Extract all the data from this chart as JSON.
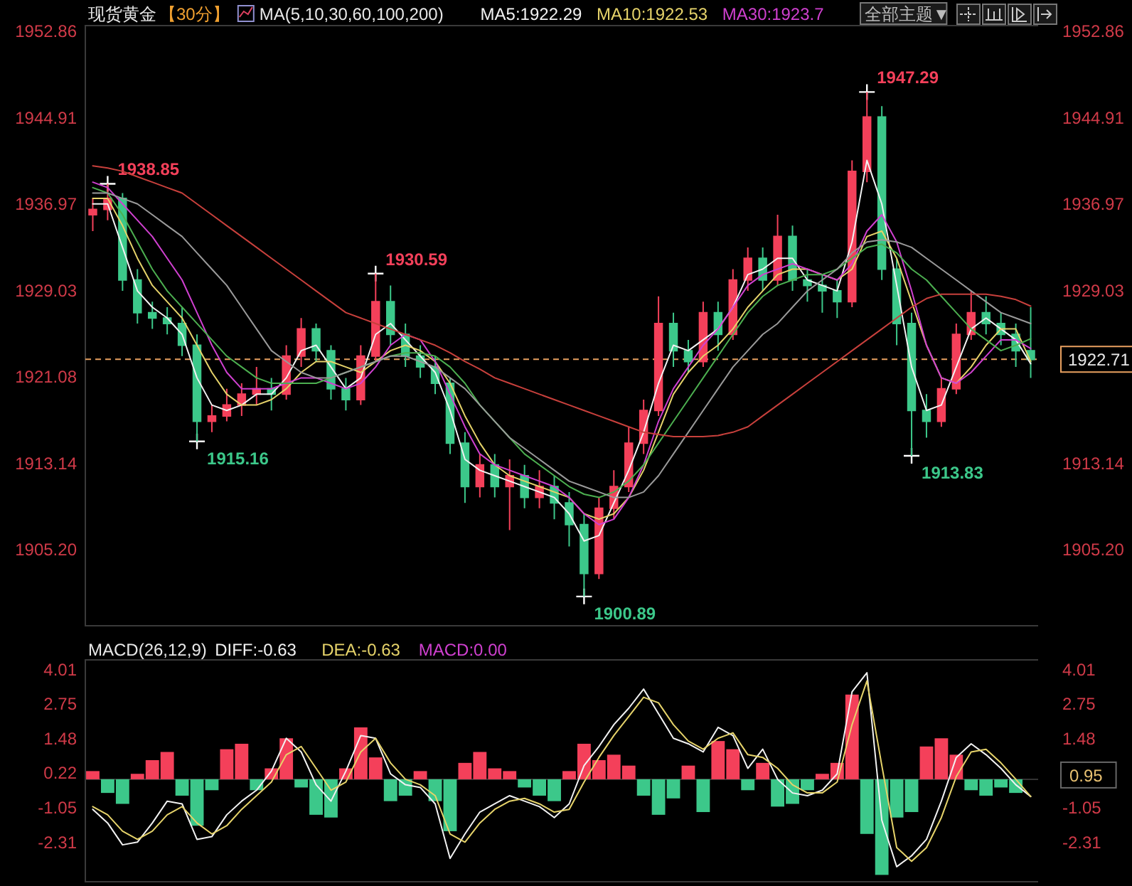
{
  "chart_data": [
    {
      "type": "candlestick",
      "title": "现货黄金",
      "subtitle": "【30分】",
      "legend_title": "MA(5,10,30,60,100,200)",
      "legend": "top",
      "categories": [
        null,
        null,
        null,
        null,
        null,
        null,
        null,
        null,
        null,
        null,
        null,
        null,
        null,
        null,
        null,
        null,
        null,
        null,
        null,
        null,
        null,
        null,
        null,
        null,
        null,
        null,
        null,
        null,
        null,
        null,
        null,
        null,
        null,
        null,
        null,
        null,
        null,
        null,
        null,
        null,
        null,
        null,
        null,
        null,
        null,
        null,
        null,
        null,
        null,
        null,
        null,
        null,
        null,
        null,
        null,
        null,
        null,
        null,
        null,
        null,
        null,
        null,
        null,
        null
      ],
      "ylim": [
        1898.2,
        1953.4
      ],
      "yticks": [
        {
          "value": 1905.2,
          "label": "1905.20"
        },
        {
          "value": 1913.14,
          "label": "1913.14"
        },
        {
          "value": 1921.08,
          "label": "1921.08"
        },
        {
          "value": 1929.03,
          "label": "1929.03"
        },
        {
          "value": 1936.97,
          "label": "1936.97"
        },
        {
          "value": 1944.91,
          "label": "1944.91"
        },
        {
          "value": 1952.86,
          "label": "1952.86"
        }
      ],
      "y2lim": [
        1898.2,
        1953.4
      ],
      "y2ticks": [
        {
          "value": 1905.2,
          "label": "1905.20"
        },
        {
          "value": 1913.14,
          "label": "1913.14"
        },
        {
          "value": 1929.03,
          "label": "1929.03"
        },
        {
          "value": 1936.97,
          "label": "1936.97"
        },
        {
          "value": 1944.91,
          "label": "1944.91"
        },
        {
          "value": 1952.86,
          "label": "1952.86"
        }
      ],
      "ohlc": [
        [
          1936,
          1937.5,
          1934.5,
          1936.5
        ],
        [
          1936.5,
          1938.85,
          1935.5,
          1937.5
        ],
        [
          1937.5,
          1938,
          1929,
          1930
        ],
        [
          1930,
          1931,
          1926,
          1927
        ],
        [
          1927,
          1928,
          1925.5,
          1926.5
        ],
        [
          1926.5,
          1927.5,
          1925,
          1926
        ],
        [
          1926,
          1927.5,
          1923,
          1924
        ],
        [
          1924,
          1925,
          1915.16,
          1917
        ],
        [
          1917,
          1918.5,
          1916,
          1917.5
        ],
        [
          1917.5,
          1920,
          1917,
          1918.5
        ],
        [
          1918.5,
          1920.5,
          1917.5,
          1919.5
        ],
        [
          1919.5,
          1922,
          1918.5,
          1920
        ],
        [
          1920,
          1921,
          1918,
          1919.5
        ],
        [
          1919.5,
          1924,
          1919,
          1923
        ],
        [
          1923,
          1926.5,
          1922,
          1925.5
        ],
        [
          1925.5,
          1926,
          1922.5,
          1923.5
        ],
        [
          1923.5,
          1924,
          1919,
          1920
        ],
        [
          1920,
          1921,
          1918,
          1919
        ],
        [
          1919,
          1924,
          1918.5,
          1923
        ],
        [
          1923,
          1930.59,
          1922.5,
          1928
        ],
        [
          1928,
          1929.5,
          1924,
          1925
        ],
        [
          1925,
          1926,
          1922,
          1923
        ],
        [
          1923,
          1924,
          1921,
          1922
        ],
        [
          1922,
          1923,
          1919.5,
          1920.5
        ],
        [
          1920.5,
          1921,
          1914,
          1915
        ],
        [
          1915,
          1916,
          1909.5,
          1911
        ],
        [
          1911,
          1914,
          1910,
          1913
        ],
        [
          1913,
          1914,
          1910,
          1911
        ],
        [
          1911,
          1913.5,
          1907,
          1912
        ],
        [
          1912,
          1913,
          1909,
          1910
        ],
        [
          1910,
          1912.5,
          1909,
          1911
        ],
        [
          1911,
          1912,
          1908,
          1909.5
        ],
        [
          1909.5,
          1910.5,
          1905.5,
          1907.5
        ],
        [
          1907.5,
          1908.5,
          1900.89,
          1903
        ],
        [
          1903,
          1910,
          1902.5,
          1909
        ],
        [
          1909,
          1912.5,
          1908,
          1911
        ],
        [
          1911,
          1916.5,
          1910.5,
          1915
        ],
        [
          1915,
          1919,
          1914,
          1918
        ],
        [
          1918,
          1928.5,
          1917.5,
          1926
        ],
        [
          1926,
          1927,
          1922,
          1923.5
        ],
        [
          1923.5,
          1924.5,
          1921.5,
          1922.5
        ],
        [
          1922.5,
          1928,
          1922,
          1927
        ],
        [
          1927,
          1928,
          1923.5,
          1925
        ],
        [
          1925,
          1931,
          1924.5,
          1930
        ],
        [
          1930,
          1933,
          1929,
          1932
        ],
        [
          1932,
          1933,
          1929,
          1930
        ],
        [
          1930,
          1936,
          1929.5,
          1934
        ],
        [
          1934,
          1935,
          1929,
          1930
        ],
        [
          1930,
          1931,
          1928,
          1929.5
        ],
        [
          1929.5,
          1930.5,
          1927,
          1929
        ],
        [
          1929,
          1930,
          1926.5,
          1928
        ],
        [
          1928,
          1941,
          1927.5,
          1940
        ],
        [
          1940,
          1947.29,
          1939,
          1945
        ],
        [
          1945,
          1946,
          1930,
          1931
        ],
        [
          1931,
          1932,
          1924,
          1926
        ],
        [
          1926,
          1927,
          1913.83,
          1918
        ],
        [
          1918,
          1919.5,
          1915.5,
          1917
        ],
        [
          1917,
          1921,
          1916.5,
          1920
        ],
        [
          1920,
          1926,
          1919.5,
          1925
        ],
        [
          1925,
          1929,
          1924.5,
          1927
        ],
        [
          1927,
          1928.5,
          1925,
          1926
        ],
        [
          1926,
          1927,
          1924,
          1925
        ],
        [
          1925,
          1926,
          1922,
          1923.5
        ],
        [
          1923.5,
          1927.5,
          1921,
          1922.7
        ]
      ],
      "series": [
        {
          "type": "line",
          "name": "MA5:1922.29",
          "color": "#f2f2f2",
          "values": [
            1937,
            1937,
            1933,
            1929,
            1927.5,
            1926.5,
            1925,
            1921,
            1918.5,
            1918,
            1918.5,
            1919.5,
            1919.5,
            1921,
            1923.5,
            1924,
            1922,
            1920,
            1921,
            1925,
            1926,
            1924.5,
            1923,
            1921.5,
            1918,
            1913.5,
            1912.5,
            1912,
            1911.5,
            1911,
            1910.5,
            1910,
            1908.5,
            1906,
            1906.5,
            1909.5,
            1912.5,
            1916,
            1920.5,
            1924,
            1923.5,
            1924.5,
            1925.5,
            1927.5,
            1930.5,
            1931,
            1932,
            1932,
            1930,
            1929.5,
            1929,
            1933.5,
            1941,
            1937,
            1929.5,
            1922,
            1918,
            1918.5,
            1922,
            1925.5,
            1926.5,
            1925.5,
            1924.5,
            1922.3
          ]
        },
        {
          "type": "line",
          "name": "MA10:1922.53",
          "color": "#e6d36a",
          "values": [
            1937.5,
            1937.5,
            1935,
            1932,
            1929.5,
            1928,
            1926.5,
            1924,
            1921.5,
            1919.5,
            1918.5,
            1918.5,
            1919,
            1920,
            1921.5,
            1922.5,
            1922.5,
            1922,
            1921.5,
            1922.5,
            1923.5,
            1924,
            1923.5,
            1922.5,
            1920.5,
            1917.5,
            1915,
            1913,
            1912,
            1911.5,
            1911,
            1910.5,
            1910,
            1908.5,
            1908,
            1908.5,
            1910,
            1912.5,
            1916,
            1919.5,
            1921.5,
            1923,
            1924,
            1925.5,
            1927.5,
            1929,
            1930.5,
            1931,
            1931,
            1930.5,
            1930,
            1931,
            1934,
            1934.5,
            1932,
            1928,
            1924,
            1921,
            1920.5,
            1922,
            1924,
            1925.5,
            1925.5,
            1922.5
          ]
        },
        {
          "type": "line",
          "name": "MA30:1923.7",
          "color": "#d040d0",
          "values": [
            1939,
            1938.5,
            1937,
            1935.5,
            1934,
            1932,
            1930,
            1927,
            1924,
            1921.5,
            1920,
            1920,
            1920,
            1920.5,
            1921,
            1921,
            1920.5,
            1920,
            1920.5,
            1922,
            1924,
            1925,
            1924.5,
            1922.5,
            1919.5,
            1916.5,
            1914,
            1913,
            1912.5,
            1912,
            1911.5,
            1911,
            1910,
            1908.5,
            1907.5,
            1908,
            1910,
            1913,
            1917,
            1920,
            1922,
            1924,
            1925.5,
            1927.5,
            1929.5,
            1930.5,
            1931,
            1931.5,
            1931,
            1930.5,
            1930,
            1931.5,
            1934.5,
            1936,
            1933.5,
            1929,
            1924,
            1921,
            1920.5,
            1921.5,
            1923,
            1924.5,
            1924.5,
            1923.7
          ]
        },
        {
          "type": "line",
          "color": "#4caf50",
          "values": [
            1938.5,
            1938,
            1936,
            1933.5,
            1931,
            1929,
            1927.5,
            1926,
            1924.5,
            1923,
            1922,
            1921,
            1920.5,
            1920.5,
            1920.5,
            1920.5,
            1921,
            1921.5,
            1922,
            1922.5,
            1923,
            1923.3,
            1923.3,
            1923,
            1922,
            1920.5,
            1918.5,
            1917,
            1915.5,
            1914,
            1913,
            1912,
            1911,
            1910.3,
            1910,
            1910.5,
            1911.5,
            1913,
            1915,
            1917,
            1919,
            1921,
            1923,
            1925,
            1927,
            1928.5,
            1929.5,
            1930,
            1930.5,
            1930.5,
            1931,
            1932,
            1933,
            1933.3,
            1932.5,
            1931,
            1930,
            1928.5,
            1927,
            1925.5,
            1924.5,
            1923.5,
            1924,
            1924.6
          ]
        },
        {
          "type": "line",
          "color": "#9a9a9a",
          "values": [
            1938,
            1938,
            1937.5,
            1937,
            1936,
            1935,
            1934,
            1932.5,
            1931,
            1929.5,
            1927.5,
            1925.5,
            1923.5,
            1922.5,
            1921.5,
            1921,
            1921,
            1921.5,
            1922,
            1922.5,
            1923,
            1923,
            1922.5,
            1922,
            1921,
            1920,
            1918.5,
            1917,
            1915.5,
            1914.5,
            1913.5,
            1912.5,
            1911.5,
            1911,
            1910.5,
            1910,
            1910,
            1910.5,
            1912,
            1914,
            1916,
            1918,
            1920,
            1922,
            1923.5,
            1925,
            1926,
            1927.5,
            1929,
            1930,
            1931,
            1932.5,
            1933.5,
            1933.7,
            1933.5,
            1933,
            1932,
            1931,
            1930,
            1929,
            1928,
            1927,
            1926.5,
            1926
          ]
        },
        {
          "type": "line",
          "color": "#c8403c",
          "values": [
            1940.5,
            1940.3,
            1940,
            1939.5,
            1939,
            1938.5,
            1938,
            1937,
            1936,
            1935,
            1934,
            1933,
            1932,
            1931,
            1930,
            1929,
            1928,
            1927,
            1926.5,
            1926,
            1925.5,
            1925,
            1924.5,
            1924,
            1923.3,
            1922.5,
            1921.8,
            1921,
            1920.5,
            1920,
            1919.5,
            1919,
            1918.5,
            1918,
            1917.5,
            1917,
            1916.5,
            1916,
            1915.8,
            1915.6,
            1915.6,
            1915.6,
            1915.7,
            1916,
            1916.5,
            1917.5,
            1918.5,
            1919.5,
            1920.5,
            1921.5,
            1922.5,
            1923.5,
            1924.5,
            1925.5,
            1926.5,
            1927.5,
            1928.3,
            1928.7,
            1928.7,
            1928.7,
            1928.7,
            1928.5,
            1928.2,
            1927.6
          ]
        },
        {
          "type": "scatter",
          "marker": "cross",
          "color": "#ffffff",
          "values": [
            null,
            1938.85,
            null,
            null,
            null,
            null,
            null,
            1915.16,
            null,
            null,
            null,
            null,
            null,
            null,
            null,
            null,
            null,
            null,
            null,
            1930.59,
            null,
            null,
            null,
            null,
            null,
            null,
            null,
            null,
            null,
            null,
            null,
            null,
            null,
            1900.89,
            null,
            null,
            null,
            null,
            null,
            null,
            null,
            null,
            null,
            null,
            null,
            null,
            null,
            null,
            null,
            null,
            null,
            null,
            1947.29,
            null,
            null,
            1913.83,
            null,
            null,
            null,
            null,
            null,
            null,
            null,
            null
          ],
          "value_labels": [
            null,
            "1938.85",
            null,
            null,
            null,
            null,
            null,
            "1915.16",
            null,
            null,
            null,
            null,
            null,
            null,
            null,
            null,
            null,
            null,
            null,
            "1930.59",
            null,
            null,
            null,
            null,
            null,
            null,
            null,
            null,
            null,
            null,
            null,
            null,
            null,
            "1900.89",
            null,
            null,
            null,
            null,
            null,
            null,
            null,
            null,
            null,
            null,
            null,
            null,
            null,
            null,
            null,
            null,
            null,
            null,
            "1947.29",
            null,
            null,
            "1913.83",
            null,
            null,
            null,
            null,
            null,
            null,
            null,
            null
          ]
        }
      ],
      "ref_lines": [
        {
          "axis": "y2",
          "value": 1922.71,
          "label": "1922.71",
          "color": "#e8a060",
          "line_style": "dashed"
        }
      ],
      "annotations": [
        "全部主题▼"
      ]
    },
    {
      "type": "bar",
      "title": "MACD(26,12,9)",
      "legend": "top",
      "categories": [
        null,
        null,
        null,
        null,
        null,
        null,
        null,
        null,
        null,
        null,
        null,
        null,
        null,
        null,
        null,
        null,
        null,
        null,
        null,
        null,
        null,
        null,
        null,
        null,
        null,
        null,
        null,
        null,
        null,
        null,
        null,
        null,
        null,
        null,
        null,
        null,
        null,
        null,
        null,
        null,
        null,
        null,
        null,
        null,
        null,
        null,
        null,
        null,
        null,
        null,
        null,
        null,
        null,
        null,
        null,
        null,
        null,
        null,
        null,
        null,
        null,
        null,
        null,
        null
      ],
      "ylim": [
        -3.75,
        4.37
      ],
      "yticks": [
        {
          "value": -2.31,
          "label": "-2.31"
        },
        {
          "value": -1.05,
          "label": "-1.05"
        },
        {
          "value": 0.22,
          "label": "0.22"
        },
        {
          "value": 1.48,
          "label": "1.48"
        },
        {
          "value": 2.75,
          "label": "2.75"
        },
        {
          "value": 4.01,
          "label": "4.01"
        }
      ],
      "y2lim": [
        -3.75,
        4.37
      ],
      "y2ticks": [
        {
          "value": -2.31,
          "label": "-2.31"
        },
        {
          "value": -1.05,
          "label": "-1.05"
        },
        {
          "value": 1.48,
          "label": "1.48"
        },
        {
          "value": 2.75,
          "label": "2.75"
        },
        {
          "value": 4.01,
          "label": "4.01"
        }
      ],
      "series": [
        {
          "type": "line",
          "name": "DIFF:-0.63",
          "color": "#f2f2f2",
          "values": [
            -1.1,
            -1.6,
            -2.4,
            -2.3,
            -1.6,
            -0.8,
            -0.9,
            -2.2,
            -2.1,
            -1.3,
            -0.8,
            -0.4,
            0.3,
            1.5,
            1.0,
            -0.2,
            -0.8,
            0.3,
            1.6,
            1.5,
            0.2,
            -0.2,
            -0.3,
            -0.9,
            -2.9,
            -2.0,
            -1.2,
            -0.9,
            -0.6,
            -0.8,
            -1.0,
            -1.4,
            -0.9,
            0.5,
            1.2,
            2.0,
            2.6,
            3.3,
            2.4,
            1.5,
            1.3,
            1.0,
            1.9,
            1.6,
            0.4,
            1.1,
            0.0,
            -0.5,
            -0.6,
            -0.4,
            0.2,
            3.2,
            3.9,
            -1.5,
            -3.2,
            -2.8,
            -2.2,
            -0.8,
            0.8,
            1.3,
            0.9,
            0.4,
            -0.2,
            -0.63
          ]
        },
        {
          "type": "line",
          "name": "DEA:-0.63",
          "color": "#e6d36a",
          "values": [
            -1.0,
            -1.3,
            -1.9,
            -2.2,
            -1.9,
            -1.3,
            -1.0,
            -1.6,
            -2.0,
            -1.7,
            -1.1,
            -0.6,
            -0.1,
            0.9,
            1.2,
            0.4,
            -0.4,
            -0.1,
            1.0,
            1.5,
            0.6,
            0.0,
            -0.2,
            -0.6,
            -2.0,
            -2.3,
            -1.6,
            -1.1,
            -0.8,
            -0.7,
            -0.9,
            -1.2,
            -1.1,
            -0.1,
            0.8,
            1.6,
            2.3,
            3.0,
            2.8,
            2.0,
            1.4,
            1.1,
            1.5,
            1.7,
            0.9,
            0.8,
            0.4,
            -0.2,
            -0.5,
            -0.5,
            -0.1,
            2.0,
            3.6,
            0.5,
            -2.5,
            -3.0,
            -2.5,
            -1.4,
            0.1,
            1.0,
            1.1,
            0.6,
            0.0,
            -0.63
          ]
        },
        {
          "type": "bar",
          "values": [
            0.3,
            -0.5,
            -0.9,
            0.2,
            0.7,
            1.0,
            -0.6,
            -1.7,
            -0.4,
            1.1,
            1.3,
            -0.4,
            0.4,
            1.5,
            -0.3,
            -1.3,
            -1.4,
            0.4,
            1.9,
            0.8,
            -0.8,
            -0.6,
            0.3,
            -0.8,
            -1.9,
            0.6,
            1.0,
            0.4,
            0.3,
            -0.3,
            -0.6,
            -0.8,
            0.3,
            1.3,
            0.7,
            0.9,
            0.5,
            -0.6,
            -1.3,
            -0.7,
            0.5,
            -1.2,
            1.4,
            1.1,
            -0.4,
            0.6,
            -1.0,
            -0.9,
            -0.4,
            0.2,
            0.6,
            3.1,
            -2.0,
            -3.5,
            -1.4,
            -1.2,
            1.2,
            1.5,
            0.9,
            -0.4,
            -0.6,
            -0.3,
            -0.5,
            0.0
          ],
          "colors": [
            "#f4405a",
            "#3cc88a",
            "#3cc88a",
            "#f4405a",
            "#f4405a",
            "#f4405a",
            "#3cc88a",
            "#3cc88a",
            "#3cc88a",
            "#f4405a",
            "#f4405a",
            "#3cc88a",
            "#f4405a",
            "#f4405a",
            "#3cc88a",
            "#3cc88a",
            "#3cc88a",
            "#f4405a",
            "#f4405a",
            "#f4405a",
            "#3cc88a",
            "#3cc88a",
            "#f4405a",
            "#3cc88a",
            "#3cc88a",
            "#f4405a",
            "#f4405a",
            "#f4405a",
            "#f4405a",
            "#3cc88a",
            "#3cc88a",
            "#3cc88a",
            "#f4405a",
            "#f4405a",
            "#f4405a",
            "#f4405a",
            "#f4405a",
            "#3cc88a",
            "#3cc88a",
            "#3cc88a",
            "#f4405a",
            "#3cc88a",
            "#f4405a",
            "#f4405a",
            "#3cc88a",
            "#f4405a",
            "#3cc88a",
            "#3cc88a",
            "#3cc88a",
            "#f4405a",
            "#f4405a",
            "#f4405a",
            "#3cc88a",
            "#3cc88a",
            "#3cc88a",
            "#3cc88a",
            "#f4405a",
            "#f4405a",
            "#f4405a",
            "#3cc88a",
            "#3cc88a",
            "#3cc88a",
            "#3cc88a",
            "#f4405a"
          ]
        }
      ],
      "annotations": [
        "MACD:0.00",
        "0.95"
      ]
    }
  ]
}
